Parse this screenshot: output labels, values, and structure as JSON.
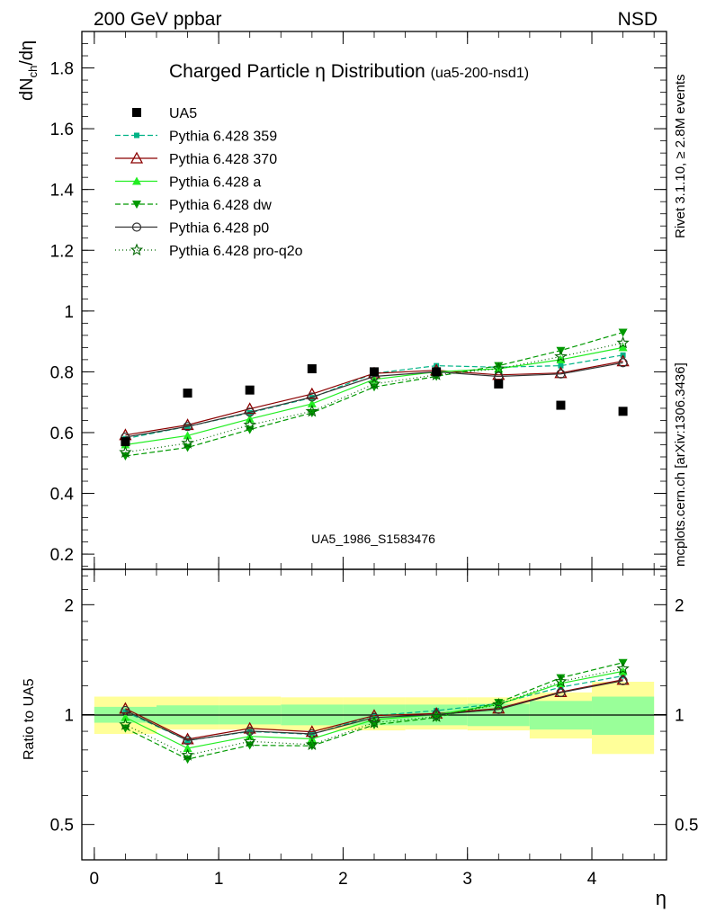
{
  "header": {
    "energy_label": "200 GeV ppbar",
    "process_label": "NSD"
  },
  "side_labels": {
    "rivet": "Rivet 3.1.10, ≥ 2.8M events",
    "mcplots": "mcplots.cern.ch [arXiv:1306.3436]"
  },
  "chart_data": {
    "type": "line",
    "title": "Charged Particle η Distribution",
    "title_suffix": "(ua5-200-nsd1)",
    "watermark": "UA5_1986_S1583476",
    "xlabel": "η",
    "ylabel": "dN_ch/dη",
    "ratio_ylabel": "Ratio to UA5",
    "xlim": [
      -0.1,
      4.6
    ],
    "ylim": [
      0.15,
      1.92
    ],
    "ratio_ylim": [
      0.4,
      2.5
    ],
    "x_ticks": [
      0,
      1,
      2,
      3,
      4
    ],
    "y_ticks": [
      0.2,
      0.4,
      0.6,
      0.8,
      1.0,
      1.2,
      1.4,
      1.6,
      1.8
    ],
    "y_tick_labels": [
      "0.2",
      "0.4",
      "0.6",
      "0.8",
      "1",
      "1.2",
      "1.4",
      "1.6",
      "1.8"
    ],
    "ratio_ticks": [
      0.5,
      1,
      2
    ],
    "ratio_tick_labels": [
      "0.5",
      "1",
      "2"
    ],
    "x": [
      0.25,
      0.75,
      1.25,
      1.75,
      2.25,
      2.75,
      3.25,
      3.75,
      4.25
    ],
    "data": {
      "name": "UA5",
      "values": [
        0.57,
        0.73,
        0.74,
        0.81,
        0.8,
        0.8,
        0.76,
        0.69,
        0.67
      ]
    },
    "bins": [
      [
        0,
        0.5
      ],
      [
        0.5,
        1.0
      ],
      [
        1.0,
        1.5
      ],
      [
        1.5,
        2.0
      ],
      [
        2.0,
        2.5
      ],
      [
        2.5,
        3.0
      ],
      [
        3.0,
        3.5
      ],
      [
        3.5,
        4.0
      ],
      [
        4.0,
        4.5
      ]
    ],
    "ratio_band_inner": [
      [
        0.95,
        1.05
      ],
      [
        0.94,
        1.06
      ],
      [
        0.94,
        1.06
      ],
      [
        0.935,
        1.065
      ],
      [
        0.935,
        1.065
      ],
      [
        0.935,
        1.065
      ],
      [
        0.93,
        1.07
      ],
      [
        0.91,
        1.09
      ],
      [
        0.88,
        1.12
      ]
    ],
    "ratio_band_outer": [
      [
        0.885,
        1.12
      ],
      [
        0.91,
        1.12
      ],
      [
        0.91,
        1.12
      ],
      [
        0.905,
        1.115
      ],
      [
        0.905,
        1.115
      ],
      [
        0.91,
        1.115
      ],
      [
        0.905,
        1.115
      ],
      [
        0.86,
        1.15
      ],
      [
        0.78,
        1.23
      ]
    ],
    "series": [
      {
        "name": "Pythia 6.428 359",
        "color": "#00b386",
        "dash": "6,3",
        "marker": "square-small",
        "values": [
          0.58,
          0.62,
          0.665,
          0.715,
          0.795,
          0.82,
          0.815,
          0.82,
          0.855
        ]
      },
      {
        "name": "Pythia 6.428 370",
        "color": "#8b0000",
        "dash": "",
        "marker": "triangle-up-open",
        "values": [
          0.592,
          0.625,
          0.678,
          0.727,
          0.795,
          0.805,
          0.79,
          0.796,
          0.835
        ]
      },
      {
        "name": "Pythia 6.428 a",
        "color": "#22ee22",
        "dash": "",
        "marker": "triangle-up",
        "values": [
          0.56,
          0.59,
          0.645,
          0.695,
          0.775,
          0.8,
          0.81,
          0.84,
          0.88
        ]
      },
      {
        "name": "Pythia 6.428 dw",
        "color": "#009900",
        "dash": "6,3",
        "marker": "triangle-down",
        "values": [
          0.523,
          0.551,
          0.61,
          0.665,
          0.75,
          0.785,
          0.82,
          0.87,
          0.93
        ]
      },
      {
        "name": "Pythia 6.428 p0",
        "color": "#333333",
        "dash": "",
        "marker": "circle-open",
        "values": [
          0.585,
          0.62,
          0.667,
          0.717,
          0.785,
          0.8,
          0.785,
          0.793,
          0.83
        ]
      },
      {
        "name": "Pythia 6.428 pro-q2o",
        "color": "#006600",
        "dash": "1,3",
        "marker": "star",
        "values": [
          0.535,
          0.565,
          0.625,
          0.67,
          0.76,
          0.79,
          0.81,
          0.85,
          0.895
        ]
      }
    ]
  }
}
